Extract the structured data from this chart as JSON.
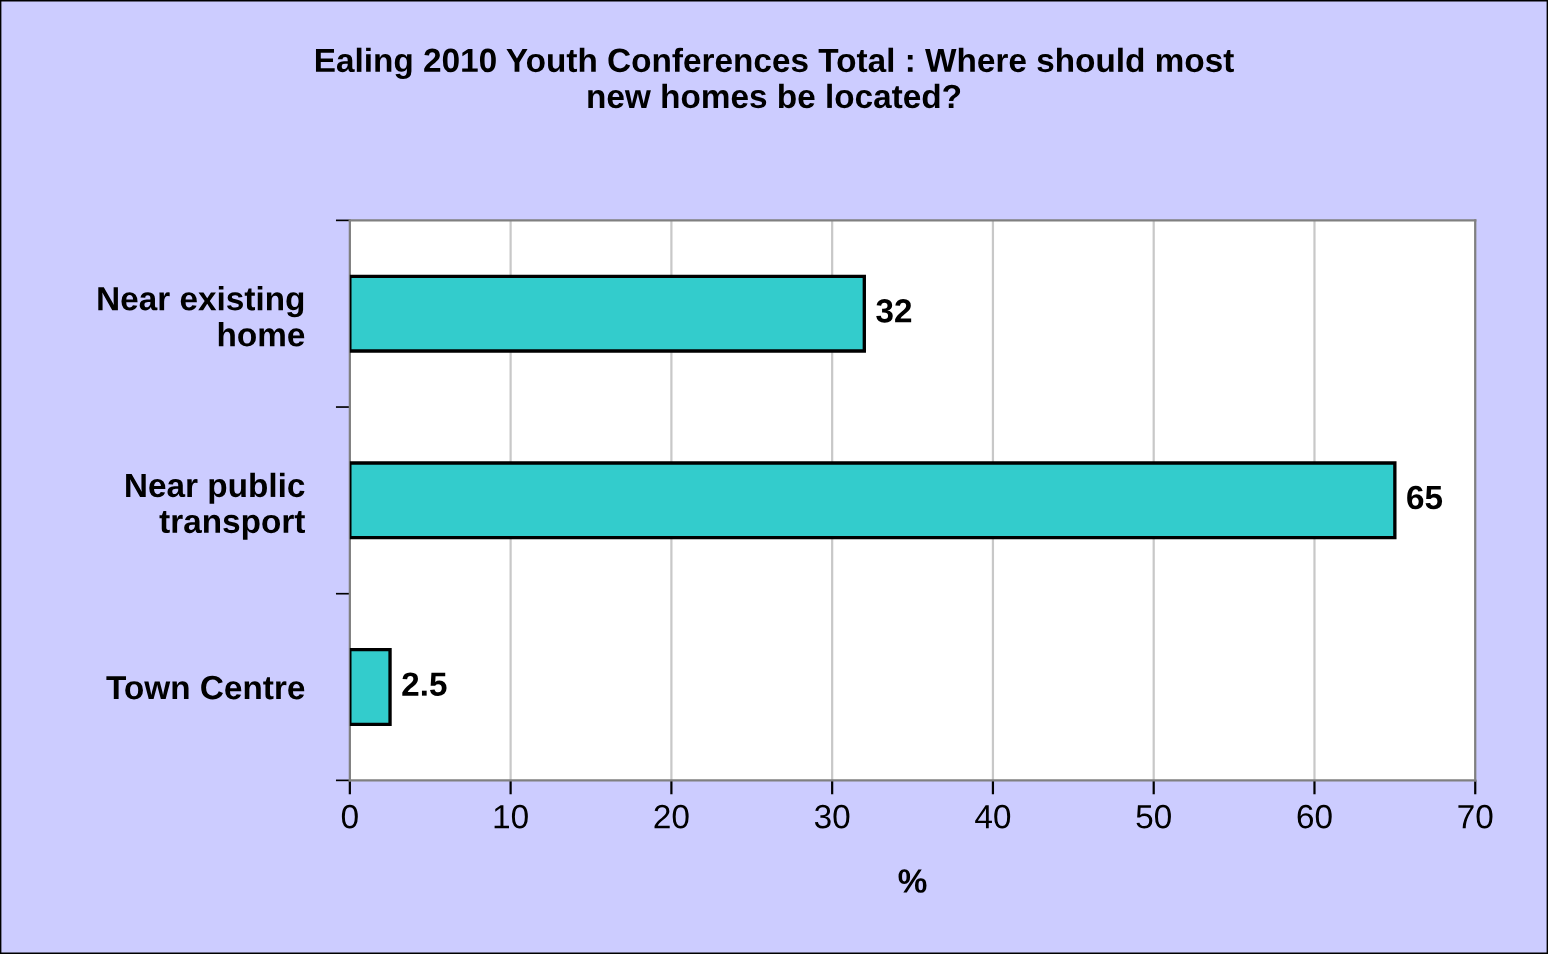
{
  "chart_data": {
    "type": "bar",
    "orientation": "horizontal",
    "title": "Ealing 2010 Youth Conferences Total : Where should most\nnew homes be located?",
    "xlabel": "%",
    "categories": [
      "Near existing\nhome",
      "Near public\ntransport",
      "Town Centre"
    ],
    "values": [
      32,
      65,
      2.5
    ],
    "color": "#33cccc",
    "data_labels": true,
    "xlim": [
      0,
      70
    ],
    "xticks": [
      0,
      10,
      20,
      30,
      40,
      50,
      60,
      70
    ],
    "grid": "x",
    "legend": false
  }
}
